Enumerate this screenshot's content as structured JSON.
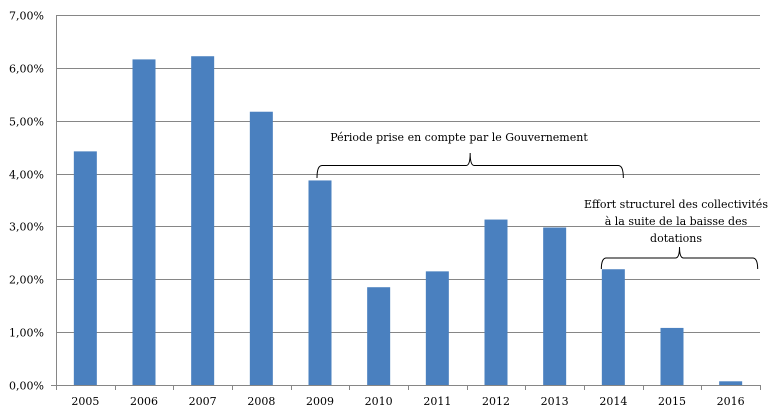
{
  "chart_data": {
    "type": "bar",
    "categories": [
      "2005",
      "2006",
      "2007",
      "2008",
      "2009",
      "2010",
      "2011",
      "2012",
      "2013",
      "2014",
      "2015",
      "2016"
    ],
    "values": [
      4.42,
      6.16,
      6.22,
      5.17,
      3.87,
      1.85,
      2.15,
      3.13,
      2.98,
      2.19,
      1.08,
      0.07
    ],
    "ylim": [
      0,
      7
    ],
    "yticks": [
      0,
      1,
      2,
      3,
      4,
      5,
      6,
      7
    ],
    "ytick_labels": [
      "0,00%",
      "1,00%",
      "2,00%",
      "3,00%",
      "4,00%",
      "5,00%",
      "6,00%",
      "7,00%"
    ],
    "grid": true,
    "bar_color": "#4a80bf",
    "annotations": [
      {
        "text": "Période prise en compte par le Gouvernement",
        "from": "2009",
        "to": "2014"
      },
      {
        "text_lines": [
          "Effort structurel des collectivités",
          "à la suite de la baisse des",
          "dotations"
        ],
        "from": "2014",
        "to": "2016"
      }
    ]
  }
}
